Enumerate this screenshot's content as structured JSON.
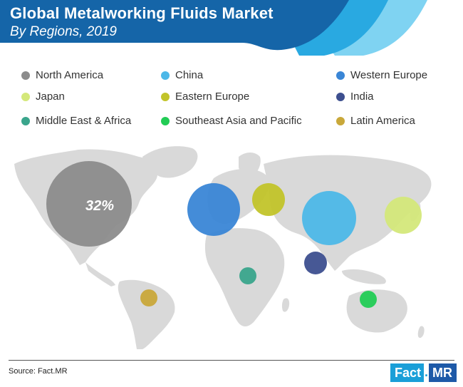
{
  "header": {
    "title": "Global Metalworking Fluids Market",
    "subtitle": "By Regions, 2019",
    "colors": {
      "dark": "#1565a8",
      "mid": "#29a9e1",
      "light": "#7fd3f2"
    }
  },
  "chart_data": {
    "type": "bubble-map",
    "title": "Global Metalworking Fluids Market",
    "subtitle": "By Regions, 2019",
    "legend_position": "top",
    "series": [
      {
        "name": "North America",
        "color": "#8c8c8c",
        "share_label": "32%",
        "size_rank": 1
      },
      {
        "name": "China",
        "color": "#4db8e8",
        "size_rank": 2
      },
      {
        "name": "Western Europe",
        "color": "#3a86d6",
        "size_rank": 3
      },
      {
        "name": "Japan",
        "color": "#d4e87a",
        "size_rank": 5
      },
      {
        "name": "Eastern Europe",
        "color": "#c2c42a",
        "size_rank": 4
      },
      {
        "name": "India",
        "color": "#3d4f8f",
        "size_rank": 6
      },
      {
        "name": "Middle East & Africa",
        "color": "#3aa58c",
        "size_rank": 7
      },
      {
        "name": "Southeast Asia and Pacific",
        "color": "#22cc55",
        "size_rank": 8
      },
      {
        "name": "Latin America",
        "color": "#c9a83a",
        "size_rank": 9
      }
    ]
  },
  "footer": {
    "source": "Source: Fact.MR",
    "logo_left": "Fact",
    "logo_dot": ".",
    "logo_right": "MR"
  }
}
